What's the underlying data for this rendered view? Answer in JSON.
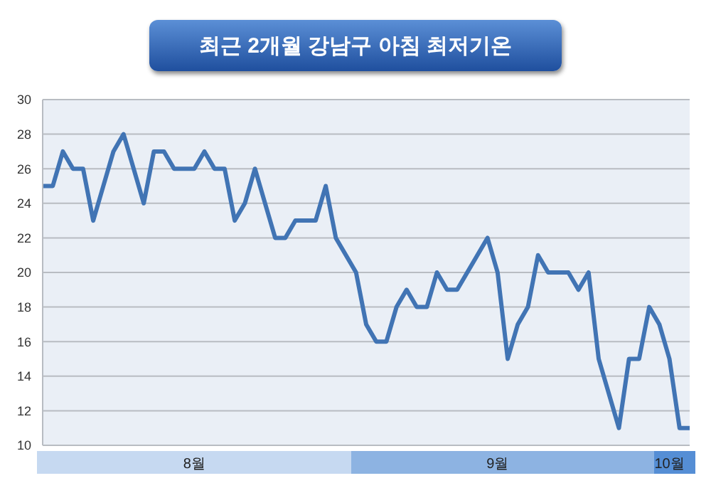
{
  "chart_data": {
    "type": "line",
    "title": "최근 2개월 강남구 아침 최저기온",
    "x": [
      "--08-01",
      "--08-02",
      "--08-03",
      "--08-04",
      "--08-05",
      "--08-06",
      "--08-07",
      "--08-08",
      "--08-09",
      "--08-10",
      "--08-11",
      "--08-12",
      "--08-13",
      "--08-14",
      "--08-15",
      "--08-16",
      "--08-17",
      "--08-18",
      "--08-19",
      "--08-20",
      "--08-21",
      "--08-22",
      "--08-23",
      "--08-24",
      "--08-25",
      "--08-26",
      "--08-27",
      "--08-28",
      "--08-29",
      "--08-30",
      "--08-31",
      "--09-01",
      "--09-02",
      "--09-03",
      "--09-04",
      "--09-05",
      "--09-06",
      "--09-07",
      "--09-08",
      "--09-09",
      "--09-10",
      "--09-11",
      "--09-12",
      "--09-13",
      "--09-14",
      "--09-15",
      "--09-16",
      "--09-17",
      "--09-18",
      "--09-19",
      "--09-20",
      "--09-21",
      "--09-22",
      "--09-23",
      "--09-24",
      "--09-25",
      "--09-26",
      "--09-27",
      "--09-28",
      "--09-29",
      "--09-30",
      "--10-01",
      "--10-02",
      "--10-03",
      "--10-04"
    ],
    "series": [
      {
        "color": "#4174b4",
        "values": [
          25,
          25,
          27,
          26,
          26,
          23,
          25,
          27,
          28,
          26,
          24,
          27,
          27,
          26,
          26,
          26,
          27,
          26,
          26,
          23,
          24,
          26,
          24,
          22,
          22,
          23,
          23,
          23,
          25,
          22,
          21,
          20,
          17,
          16,
          16,
          18,
          19,
          18,
          18,
          20,
          19,
          19,
          20,
          21,
          22,
          20,
          15,
          17,
          18,
          21,
          20,
          20,
          20,
          19,
          20,
          15,
          13,
          11,
          15,
          15,
          18,
          17,
          15,
          11,
          11
        ]
      }
    ],
    "xlim": [
      "--08-01",
      "--10-04"
    ],
    "xticks": [
      {
        "value": "--08-16",
        "label": "8월"
      },
      {
        "value": "--09-15",
        "label": "9월"
      },
      {
        "value": "--10-02",
        "label": "10월"
      }
    ],
    "ylim": [
      10,
      30
    ],
    "yticks": [
      10,
      12,
      14,
      16,
      18,
      20,
      22,
      24,
      26,
      28,
      30
    ],
    "grid": "y",
    "marker": "none",
    "line_style": "solid"
  }
}
